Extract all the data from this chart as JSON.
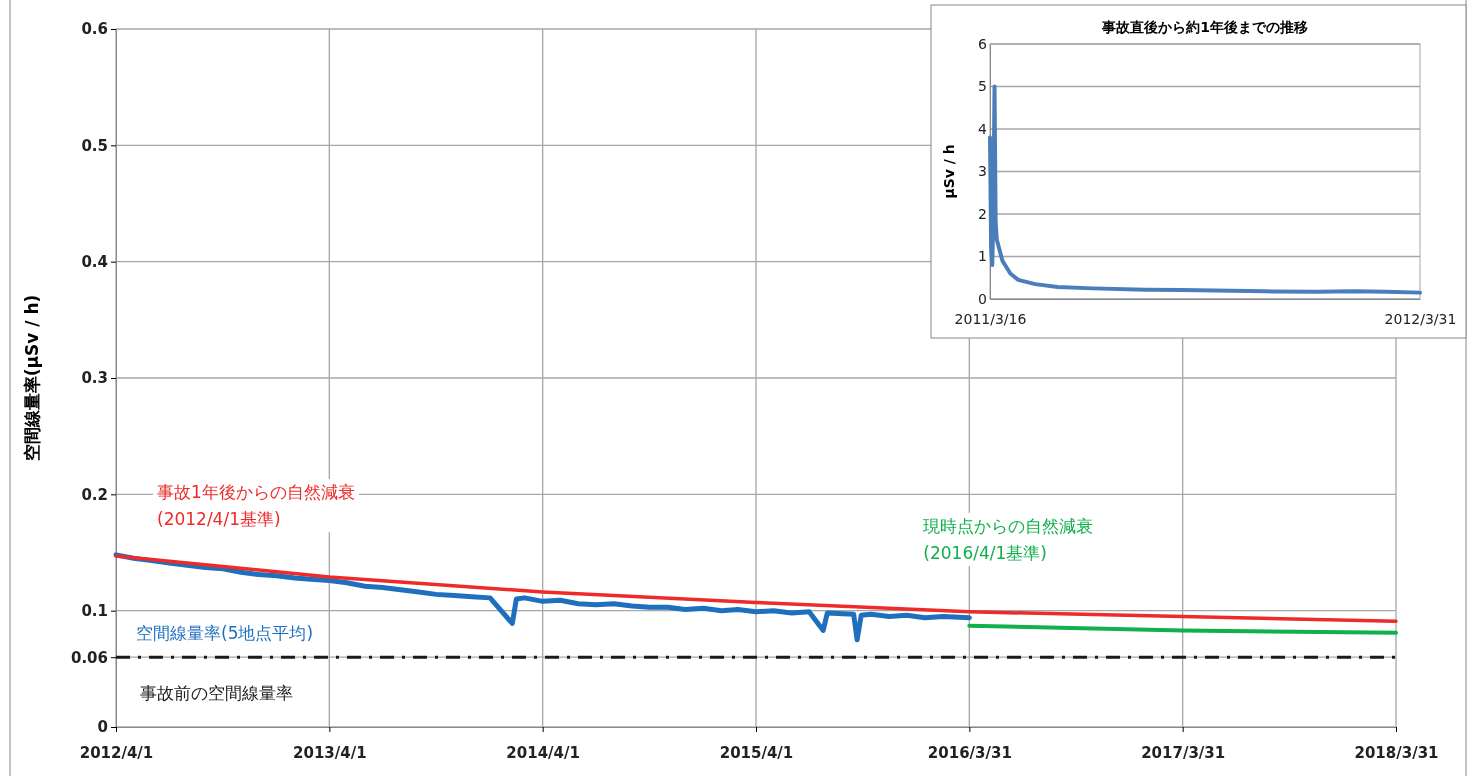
{
  "chart_data": [
    {
      "type": "line",
      "ylabel": "空間線量率(μSv / h)",
      "xlim": [
        "2012-04-01",
        "2018-03-31"
      ],
      "xticks": [
        {
          "value": "2012-04-01",
          "label": "2012/4/1"
        },
        {
          "value": "2013-04-01",
          "label": "2013/4/1"
        },
        {
          "value": "2014-04-01",
          "label": "2014/4/1"
        },
        {
          "value": "2015-04-01",
          "label": "2015/4/1"
        },
        {
          "value": "2016-03-31",
          "label": "2016/3/31"
        },
        {
          "value": "2017-03-31",
          "label": "2017/3/31"
        },
        {
          "value": "2018-03-31",
          "label": "2018/3/31"
        }
      ],
      "ylim": [
        0,
        0.6
      ],
      "yticks": [
        0,
        0.06,
        0.1,
        0.2,
        0.3,
        0.4,
        0.5,
        0.6
      ],
      "grid": true,
      "marker": "none",
      "series": [
        {
          "name": "空間線量率(5地点平均)",
          "color": "#1f6fbf",
          "x": [
            "2012-04-01",
            "2012-05-01",
            "2012-06-01",
            "2012-07-01",
            "2012-08-01",
            "2012-09-01",
            "2012-10-01",
            "2012-11-01",
            "2012-12-01",
            "2013-01-01",
            "2013-02-01",
            "2013-03-01",
            "2013-04-01",
            "2013-05-01",
            "2013-06-01",
            "2013-07-01",
            "2013-08-01",
            "2013-09-01",
            "2013-10-01",
            "2013-11-01",
            "2013-12-01",
            "2014-01-01",
            "2014-02-08",
            "2014-02-15",
            "2014-03-01",
            "2014-04-01",
            "2014-05-01",
            "2014-06-01",
            "2014-07-01",
            "2014-08-01",
            "2014-09-01",
            "2014-10-01",
            "2014-11-01",
            "2014-12-01",
            "2015-01-01",
            "2015-02-01",
            "2015-03-01",
            "2015-04-01",
            "2015-05-01",
            "2015-06-01",
            "2015-07-01",
            "2015-07-25",
            "2015-08-01",
            "2015-09-15",
            "2015-09-21",
            "2015-09-28",
            "2015-10-15",
            "2015-11-15",
            "2015-12-15",
            "2016-01-15",
            "2016-02-15",
            "2016-03-31"
          ],
          "values": [
            0.148,
            0.145,
            0.143,
            0.141,
            0.139,
            0.137,
            0.136,
            0.133,
            0.131,
            0.13,
            0.128,
            0.127,
            0.126,
            0.124,
            0.121,
            0.12,
            0.118,
            0.116,
            0.114,
            0.113,
            0.112,
            0.111,
            0.089,
            0.11,
            0.111,
            0.108,
            0.109,
            0.106,
            0.105,
            0.106,
            0.104,
            0.103,
            0.103,
            0.101,
            0.102,
            0.1,
            0.101,
            0.099,
            0.1,
            0.098,
            0.099,
            0.083,
            0.098,
            0.097,
            0.075,
            0.096,
            0.097,
            0.095,
            0.096,
            0.094,
            0.095,
            0.094
          ]
        },
        {
          "name": "事故1年後からの自然減衰\n(2012/4/1基準)",
          "color": "#ee2a2a",
          "x": [
            "2012-04-01",
            "2013-04-01",
            "2014-04-01",
            "2015-04-01",
            "2016-03-31",
            "2017-03-31",
            "2018-03-31"
          ],
          "values": [
            0.147,
            0.129,
            0.116,
            0.107,
            0.099,
            0.095,
            0.091
          ]
        },
        {
          "name": "現時点からの自然減衰\n(2016/4/1基準)",
          "color": "#10b04a",
          "x": [
            "2016-03-31",
            "2017-03-31",
            "2018-03-31"
          ],
          "values": [
            0.087,
            0.083,
            0.081
          ]
        }
      ],
      "ref_lines": [
        {
          "axis": "y",
          "value": 0.06,
          "label": "事故前の空間線量率",
          "color": "#1a1a1a",
          "line_style": "dashdot"
        }
      ]
    },
    {
      "type": "line",
      "title": "事故直後から約1年後までの推移",
      "ylabel": "μSv / h",
      "xlim": [
        "2011-03-16",
        "2012-03-31"
      ],
      "xticks": [
        {
          "value": "2011-03-16",
          "label": "2011/3/16"
        },
        {
          "value": "2012-03-31",
          "label": "2012/3/31"
        }
      ],
      "ylim": [
        0,
        6
      ],
      "yticks": [
        0,
        1,
        2,
        3,
        4,
        5,
        6
      ],
      "grid": "y",
      "marker": "none",
      "series": [
        {
          "color": "#4a7ebb",
          "x": [
            "2011-03-16",
            "2011-03-17",
            "2011-03-18",
            "2011-03-19",
            "2011-03-20",
            "2011-03-21",
            "2011-03-22",
            "2011-03-24",
            "2011-03-27",
            "2011-04-03",
            "2011-04-10",
            "2011-04-25",
            "2011-05-15",
            "2011-06-15",
            "2011-08-01",
            "2011-09-01",
            "2011-10-01",
            "2011-11-15",
            "2012-01-01",
            "2012-02-01",
            "2012-03-01",
            "2012-03-31"
          ],
          "values": [
            3.8,
            1.2,
            0.8,
            2.0,
            5.0,
            1.8,
            1.4,
            1.2,
            0.9,
            0.6,
            0.45,
            0.35,
            0.28,
            0.25,
            0.22,
            0.21,
            0.2,
            0.18,
            0.17,
            0.18,
            0.17,
            0.15
          ]
        }
      ]
    }
  ]
}
